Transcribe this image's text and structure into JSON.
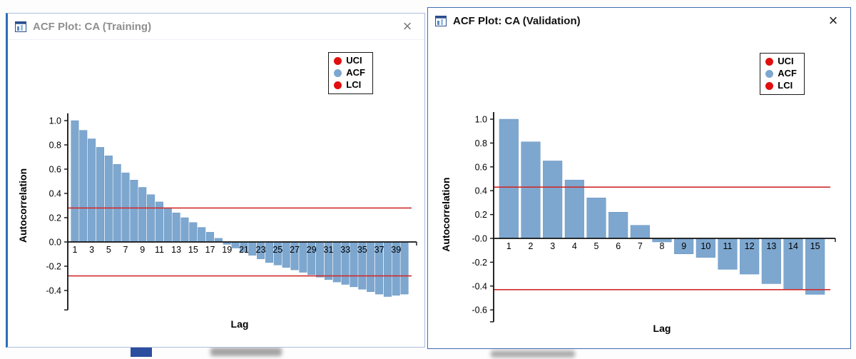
{
  "windows": [
    {
      "title": "ACF Plot: CA (Training)",
      "close": "×"
    },
    {
      "title": "ACF Plot: CA (Validation)",
      "close": "×"
    }
  ],
  "chart_data": [
    {
      "type": "bar",
      "title": "ACF Plot: CA (Training)",
      "xlabel": "Lag",
      "ylabel": "Autocorrelation",
      "x": [
        1,
        2,
        3,
        4,
        5,
        6,
        7,
        8,
        9,
        10,
        11,
        12,
        13,
        14,
        15,
        16,
        17,
        18,
        19,
        20,
        21,
        22,
        23,
        24,
        25,
        26,
        27,
        28,
        29,
        30,
        31,
        32,
        33,
        34,
        35,
        36,
        37,
        38,
        39,
        40
      ],
      "values": [
        1.0,
        0.92,
        0.85,
        0.78,
        0.71,
        0.64,
        0.57,
        0.51,
        0.45,
        0.39,
        0.33,
        0.28,
        0.24,
        0.2,
        0.16,
        0.12,
        0.08,
        0.03,
        -0.02,
        -0.05,
        -0.08,
        -0.11,
        -0.14,
        -0.17,
        -0.19,
        -0.21,
        -0.23,
        -0.25,
        -0.27,
        -0.29,
        -0.31,
        -0.33,
        -0.35,
        -0.37,
        -0.39,
        -0.41,
        -0.43,
        -0.45,
        -0.44,
        -0.43
      ],
      "uci": 0.28,
      "lci": -0.28,
      "ylim": [
        -0.56,
        1.06
      ],
      "yticks": [
        1.0,
        0.8,
        0.6,
        0.4,
        0.2,
        0.0,
        -0.2,
        -0.4
      ],
      "ytick_labels": [
        "1.0",
        "0.8",
        "0.6",
        "0.4",
        "0.2",
        "0.0",
        "-0.2",
        "-0.4"
      ],
      "xtick_lags": [
        1,
        3,
        5,
        7,
        9,
        11,
        13,
        15,
        17,
        19,
        21,
        23,
        25,
        27,
        29,
        31,
        33,
        35,
        37,
        39
      ],
      "xtick_labels": [
        "1",
        "3",
        "5",
        "7",
        "9",
        "11",
        "13",
        "15",
        "17",
        "19",
        "21",
        "23",
        "25",
        "27",
        "29",
        "31",
        "33",
        "35",
        "37",
        "39"
      ],
      "bar_color": "#7da7cf",
      "ci_color": "#cf2b2b",
      "legend": [
        {
          "label": "UCI",
          "color": "#e01010"
        },
        {
          "label": "ACF",
          "color": "#7da7cf"
        },
        {
          "label": "LCI",
          "color": "#e01010"
        }
      ],
      "grid": false,
      "legend_position": "top-right"
    },
    {
      "type": "bar",
      "title": "ACF Plot: CA (Validation)",
      "xlabel": "Lag",
      "ylabel": "Autocorrelation",
      "x": [
        1,
        2,
        3,
        4,
        5,
        6,
        7,
        8,
        9,
        10,
        11,
        12,
        13,
        14,
        15
      ],
      "values": [
        1.0,
        0.81,
        0.65,
        0.49,
        0.34,
        0.22,
        0.11,
        -0.03,
        -0.13,
        -0.16,
        -0.26,
        -0.3,
        -0.38,
        -0.43,
        -0.47
      ],
      "uci": 0.43,
      "lci": -0.43,
      "ylim": [
        -0.7,
        1.06
      ],
      "yticks": [
        1.0,
        0.8,
        0.6,
        0.4,
        0.2,
        0.0,
        -0.2,
        -0.4,
        -0.6
      ],
      "ytick_labels": [
        "1.0",
        "0.8",
        "0.6",
        "0.4",
        "0.2",
        "-0.0",
        "-0.2",
        "-0.4",
        "-0.6"
      ],
      "xtick_lags": [
        1,
        2,
        3,
        4,
        5,
        6,
        7,
        8,
        9,
        10,
        11,
        12,
        13,
        14,
        15
      ],
      "xtick_labels": [
        "1",
        "2",
        "3",
        "4",
        "5",
        "6",
        "7",
        "8",
        "9",
        "10",
        "11",
        "12",
        "13",
        "14",
        "15"
      ],
      "bar_color": "#7da7cf",
      "ci_color": "#cf2b2b",
      "legend": [
        {
          "label": "UCI",
          "color": "#e01010"
        },
        {
          "label": "ACF",
          "color": "#7da7cf"
        },
        {
          "label": "LCI",
          "color": "#e01010"
        }
      ],
      "grid": false,
      "legend_position": "top-right"
    }
  ]
}
